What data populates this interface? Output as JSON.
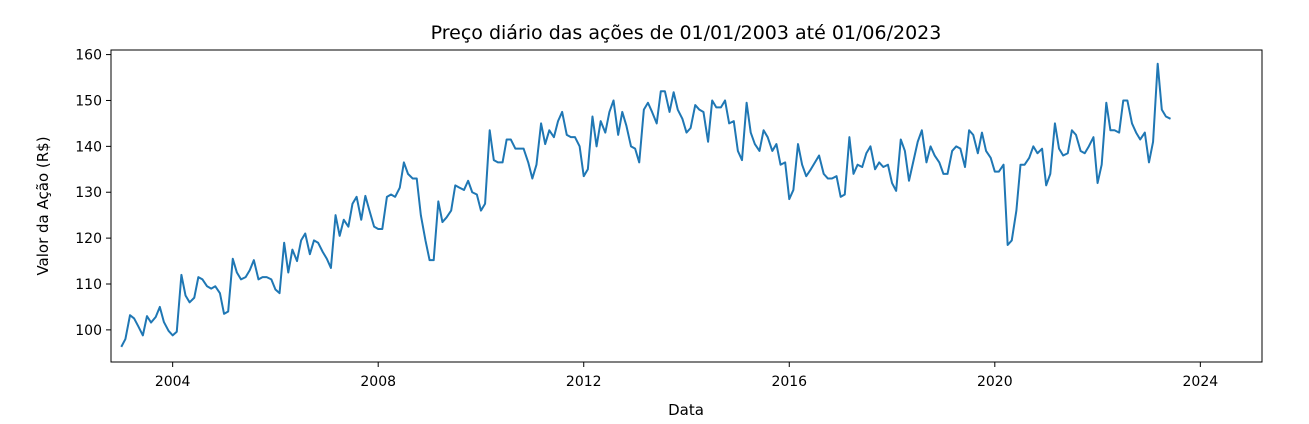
{
  "chart_data": {
    "type": "line",
    "title": "Preço diário das ações de 01/01/2003 até 01/06/2023",
    "xlabel": "Data",
    "ylabel": "Valor da Ação (R$)",
    "xlim": [
      2002.8,
      2025.2
    ],
    "ylim": [
      93,
      161
    ],
    "x_ticks": [
      2004,
      2008,
      2012,
      2016,
      2020,
      2024
    ],
    "x_tick_labels": [
      "2004",
      "2008",
      "2012",
      "2016",
      "2020",
      "2024"
    ],
    "y_ticks": [
      100,
      110,
      120,
      130,
      140,
      150,
      160
    ],
    "y_tick_labels": [
      "100",
      "110",
      "120",
      "130",
      "140",
      "150",
      "160"
    ],
    "grid": false,
    "series": [
      {
        "color": "#1f77b4",
        "x": [
          2003.0,
          2003.08,
          2003.17,
          2003.25,
          2003.33,
          2003.42,
          2003.5,
          2003.58,
          2003.67,
          2003.75,
          2003.83,
          2003.92,
          2004.0,
          2004.08,
          2004.17,
          2004.25,
          2004.33,
          2004.42,
          2004.5,
          2004.58,
          2004.67,
          2004.75,
          2004.83,
          2004.92,
          2005.0,
          2005.08,
          2005.17,
          2005.25,
          2005.33,
          2005.42,
          2005.5,
          2005.58,
          2005.67,
          2005.75,
          2005.83,
          2005.92,
          2006.0,
          2006.08,
          2006.17,
          2006.25,
          2006.33,
          2006.42,
          2006.5,
          2006.58,
          2006.67,
          2006.75,
          2006.83,
          2006.92,
          2007.0,
          2007.08,
          2007.17,
          2007.25,
          2007.33,
          2007.42,
          2007.5,
          2007.58,
          2007.67,
          2007.75,
          2007.83,
          2007.92,
          2008.0,
          2008.08,
          2008.17,
          2008.25,
          2008.33,
          2008.42,
          2008.5,
          2008.58,
          2008.67,
          2008.75,
          2008.83,
          2008.92,
          2009.0,
          2009.08,
          2009.17,
          2009.25,
          2009.33,
          2009.42,
          2009.5,
          2009.58,
          2009.67,
          2009.75,
          2009.83,
          2009.92,
          2010.0,
          2010.08,
          2010.17,
          2010.25,
          2010.33,
          2010.42,
          2010.5,
          2010.58,
          2010.67,
          2010.75,
          2010.83,
          2010.92,
          2011.0,
          2011.08,
          2011.17,
          2011.25,
          2011.33,
          2011.42,
          2011.5,
          2011.58,
          2011.67,
          2011.75,
          2011.83,
          2011.92,
          2012.0,
          2012.08,
          2012.17,
          2012.25,
          2012.33,
          2012.42,
          2012.5,
          2012.58,
          2012.67,
          2012.75,
          2012.83,
          2012.92,
          2013.0,
          2013.08,
          2013.17,
          2013.25,
          2013.33,
          2013.42,
          2013.5,
          2013.58,
          2013.67,
          2013.75,
          2013.83,
          2013.92,
          2014.0,
          2014.08,
          2014.17,
          2014.25,
          2014.33,
          2014.42,
          2014.5,
          2014.58,
          2014.67,
          2014.75,
          2014.83,
          2014.92,
          2015.0,
          2015.08,
          2015.17,
          2015.25,
          2015.33,
          2015.42,
          2015.5,
          2015.58,
          2015.67,
          2015.75,
          2015.83,
          2015.92,
          2016.0,
          2016.08,
          2016.17,
          2016.25,
          2016.33,
          2016.42,
          2016.5,
          2016.58,
          2016.67,
          2016.75,
          2016.83,
          2016.92,
          2017.0,
          2017.08,
          2017.17,
          2017.25,
          2017.33,
          2017.42,
          2017.5,
          2017.58,
          2017.67,
          2017.75,
          2017.83,
          2017.92,
          2018.0,
          2018.08,
          2018.17,
          2018.25,
          2018.33,
          2018.42,
          2018.5,
          2018.58,
          2018.67,
          2018.75,
          2018.83,
          2018.92,
          2019.0,
          2019.08,
          2019.17,
          2019.25,
          2019.33,
          2019.42,
          2019.5,
          2019.58,
          2019.67,
          2019.75,
          2019.83,
          2019.92,
          2020.0,
          2020.08,
          2020.17,
          2020.25,
          2020.33,
          2020.42,
          2020.5,
          2020.58,
          2020.67,
          2020.75,
          2020.83,
          2020.92,
          2021.0,
          2021.08,
          2021.17,
          2021.25,
          2021.33,
          2021.42,
          2021.5,
          2021.58,
          2021.67,
          2021.75,
          2021.83,
          2021.92,
          2022.0,
          2022.08,
          2022.17,
          2022.25,
          2022.33,
          2022.42,
          2022.5,
          2022.58,
          2022.67,
          2022.75,
          2022.83,
          2022.92,
          2023.0,
          2023.08,
          2023.17,
          2023.25,
          2023.33,
          2023.42
        ],
        "y": [
          96.3,
          98.0,
          103.2,
          102.5,
          100.8,
          98.8,
          103.0,
          101.6,
          102.8,
          105.0,
          101.7,
          99.8,
          98.8,
          99.6,
          112.0,
          107.5,
          106.0,
          107.0,
          111.5,
          111.0,
          109.5,
          109.0,
          109.5,
          108.0,
          103.5,
          104.0,
          115.5,
          112.5,
          111.0,
          111.5,
          113.0,
          115.2,
          111.0,
          111.5,
          111.5,
          111.0,
          108.8,
          108.0,
          119.0,
          112.5,
          117.5,
          115.0,
          119.5,
          121.0,
          116.5,
          119.5,
          119.0,
          117.0,
          115.5,
          113.5,
          125.0,
          120.5,
          124.0,
          122.5,
          127.5,
          129.0,
          124.0,
          129.2,
          126.0,
          122.5,
          122.0,
          122.0,
          129.0,
          129.5,
          129.0,
          131.0,
          136.5,
          134.0,
          133.0,
          133.0,
          125.0,
          119.5,
          115.2,
          115.2,
          128.0,
          123.5,
          124.5,
          126.0,
          131.5,
          131.0,
          130.5,
          132.5,
          130.0,
          129.5,
          126.0,
          127.5,
          143.5,
          137.0,
          136.5,
          136.5,
          141.5,
          141.5,
          139.5,
          139.5,
          139.5,
          136.5,
          133.0,
          136.0,
          145.0,
          140.5,
          143.5,
          142.0,
          145.5,
          147.5,
          142.5,
          142.0,
          142.0,
          140.0,
          133.5,
          135.0,
          146.5,
          140.0,
          145.5,
          143.0,
          147.5,
          150.0,
          142.5,
          147.5,
          144.5,
          140.0,
          139.5,
          136.5,
          148.0,
          149.5,
          147.5,
          145.0,
          152.0,
          152.0,
          147.5,
          151.8,
          148.0,
          146.0,
          143.0,
          144.0,
          149.0,
          148.0,
          147.5,
          141.0,
          150.0,
          148.5,
          148.5,
          150.0,
          145.0,
          145.5,
          139.0,
          137.0,
          149.5,
          143.0,
          140.5,
          139.0,
          143.5,
          142.0,
          139.0,
          140.5,
          136.0,
          136.5,
          128.5,
          130.5,
          140.5,
          136.0,
          133.5,
          135.0,
          136.5,
          138.0,
          134.0,
          133.0,
          133.0,
          133.5,
          129.0,
          129.5,
          142.0,
          134.0,
          136.0,
          135.5,
          138.5,
          140.0,
          135.0,
          136.5,
          135.5,
          136.0,
          132.0,
          130.3,
          141.5,
          139.0,
          132.5,
          137.0,
          141.0,
          143.5,
          136.5,
          140.0,
          138.0,
          136.5,
          134.0,
          134.0,
          139.0,
          140.0,
          139.5,
          135.5,
          143.5,
          142.5,
          138.5,
          143.0,
          139.0,
          137.5,
          134.5,
          134.5,
          136.0,
          118.5,
          119.5,
          126.0,
          136.0,
          136.0,
          137.5,
          140.0,
          138.5,
          139.5,
          131.5,
          134.0,
          145.0,
          139.5,
          138.0,
          138.5,
          143.5,
          142.5,
          139.0,
          138.5,
          140.0,
          142.0,
          132.0,
          136.0,
          149.5,
          143.5,
          143.5,
          143.0,
          150.0,
          150.0,
          145.0,
          143.0,
          141.5,
          143.0,
          136.5,
          141.0,
          158.0,
          148.0,
          146.5,
          146.0
        ]
      }
    ]
  }
}
